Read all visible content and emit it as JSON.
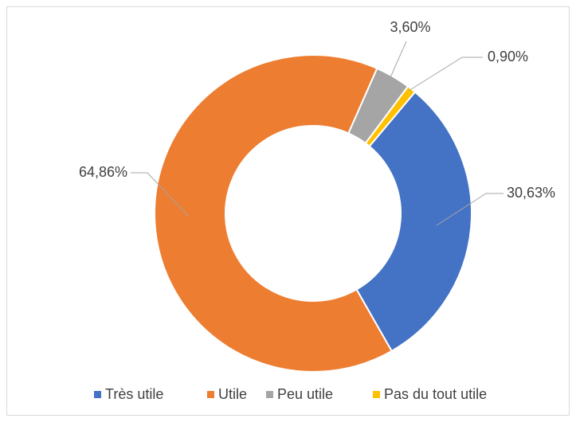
{
  "chart_data": {
    "type": "doughnut",
    "categories": [
      "Très utile",
      "Utile",
      "Peu utile",
      "Pas du tout utile"
    ],
    "values": [
      30.63,
      64.86,
      3.6,
      0.9
    ],
    "value_labels": [
      "30,63%",
      "64,86%",
      "3,60%",
      "0,90%"
    ],
    "colors": [
      "#4472c4",
      "#ed7d31",
      "#a5a5a5",
      "#ffc000"
    ],
    "legend": "bottom"
  }
}
